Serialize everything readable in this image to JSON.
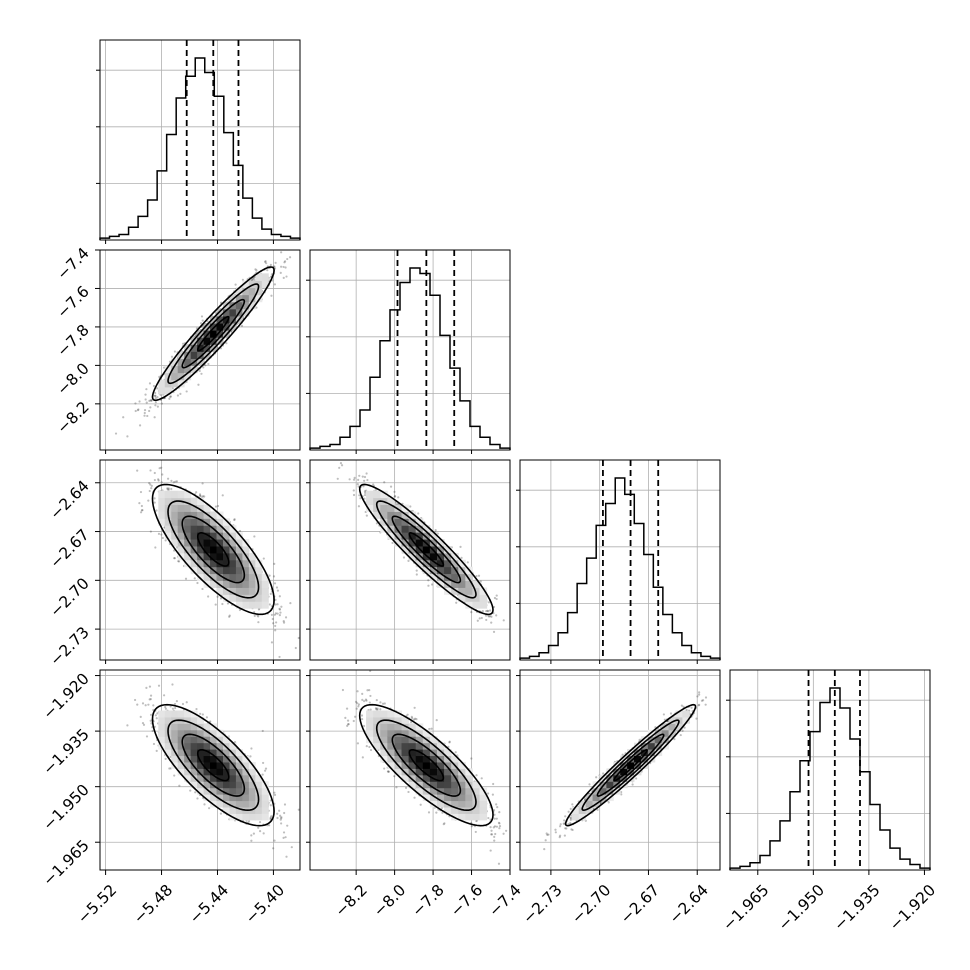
{
  "chart_data": {
    "type": "corner",
    "dimensions": 4,
    "grid": true,
    "quantile_lines": "dashed",
    "parameters": [
      {
        "index": 0,
        "median": -5.443,
        "q16": -5.462,
        "q84": -5.425,
        "range": [
          -5.524,
          -5.381
        ],
        "ticks": [
          -5.52,
          -5.48,
          -5.44,
          -5.4
        ],
        "tick_labels": [
          "−5.52",
          "−5.48",
          "−5.44",
          "−5.40"
        ]
      },
      {
        "index": 1,
        "median": -7.835,
        "q16": -7.985,
        "q84": -7.69,
        "range": [
          -8.44,
          -7.4
        ],
        "ticks": [
          -8.2,
          -8.0,
          -7.8,
          -7.6,
          -7.4
        ],
        "tick_labels": [
          "−8.2",
          "−8.0",
          "−7.8",
          "−7.6",
          "−7.4"
        ]
      },
      {
        "index": 2,
        "median": -2.681,
        "q16": -2.698,
        "q84": -2.664,
        "range": [
          -2.749,
          -2.626
        ],
        "ticks": [
          -2.73,
          -2.7,
          -2.67,
          -2.64
        ],
        "tick_labels": [
          "−2.73",
          "−2.70",
          "−2.67",
          "−2.64"
        ]
      },
      {
        "index": 3,
        "median": -1.9442,
        "q16": -1.9513,
        "q84": -1.9374,
        "range": [
          -1.9725,
          -1.9185
        ],
        "ticks": [
          -1.965,
          -1.95,
          -1.935,
          -1.92
        ],
        "tick_labels": [
          "−1.965",
          "−1.950",
          "−1.935",
          "−1.920"
        ]
      }
    ],
    "marginals": [
      {
        "param": 0,
        "counts": [
          1,
          2,
          3,
          7,
          13,
          22,
          38,
          58,
          78,
          90,
          100,
          92,
          79,
          59,
          41,
          23,
          12,
          6,
          3,
          2,
          1
        ]
      },
      {
        "param": 1,
        "counts": [
          1,
          2,
          3,
          7,
          13,
          22,
          40,
          60,
          77,
          92,
          100,
          97,
          85,
          63,
          45,
          27,
          13,
          7,
          3,
          1
        ]
      },
      {
        "param": 2,
        "counts": [
          1,
          2,
          4,
          8,
          15,
          26,
          42,
          56,
          74,
          86,
          100,
          91,
          75,
          58,
          40,
          25,
          15,
          8,
          4,
          2,
          1
        ]
      },
      {
        "param": 3,
        "counts": [
          1,
          2,
          4,
          8,
          16,
          27,
          43,
          60,
          76,
          92,
          100,
          89,
          72,
          54,
          36,
          22,
          12,
          6,
          3,
          1
        ]
      }
    ],
    "correlations": [
      {
        "pair": [
          1,
          0
        ],
        "rho": 0.95
      },
      {
        "pair": [
          2,
          0
        ],
        "rho": -0.78
      },
      {
        "pair": [
          2,
          1
        ],
        "rho": -0.93
      },
      {
        "pair": [
          3,
          0
        ],
        "rho": -0.76
      },
      {
        "pair": [
          3,
          1
        ],
        "rho": -0.82
      },
      {
        "pair": [
          3,
          2
        ],
        "rho": 0.97
      }
    ]
  }
}
